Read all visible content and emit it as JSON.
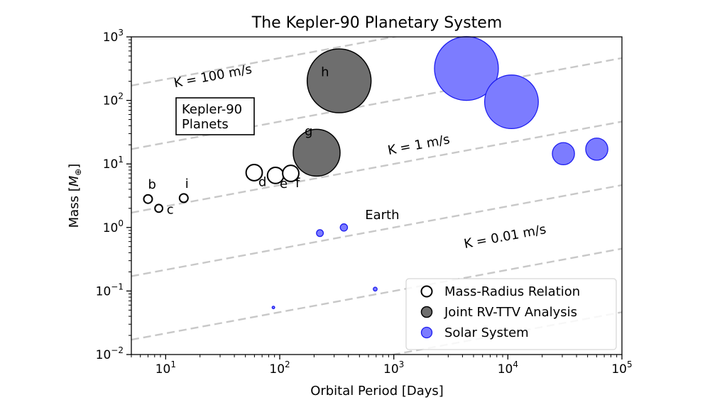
{
  "chart_data": {
    "type": "scatter",
    "title": "The Kepler-90 Planetary System",
    "xlabel": "Orbital Period [Days]",
    "ylabel_main": "Mass [",
    "ylabel_symbol": "M",
    "ylabel_sub": "⊕",
    "ylabel_end": "]",
    "xscale": "log",
    "yscale": "log",
    "xlim": [
      5,
      100000
    ],
    "ylim": [
      0.01,
      1000
    ],
    "x_ticks": [
      {
        "value": 10,
        "base": "10",
        "exp": "1"
      },
      {
        "value": 100,
        "base": "10",
        "exp": "2"
      },
      {
        "value": 1000,
        "base": "10",
        "exp": "3"
      },
      {
        "value": 10000,
        "base": "10",
        "exp": "4"
      },
      {
        "value": 100000,
        "base": "10",
        "exp": "5"
      }
    ],
    "y_ticks": [
      {
        "value": 0.01,
        "base": "10",
        "exp": "−2"
      },
      {
        "value": 0.1,
        "base": "10",
        "exp": "−1"
      },
      {
        "value": 1,
        "base": "10",
        "exp": "0"
      },
      {
        "value": 10,
        "base": "10",
        "exp": "1"
      },
      {
        "value": 100,
        "base": "10",
        "exp": "2"
      },
      {
        "value": 1000,
        "base": "10",
        "exp": "3"
      }
    ],
    "rv_lines": {
      "slope": 0.3333,
      "intercepts": [
        2.0,
        1.0,
        0.0,
        -1.0,
        -2.0,
        -3.0
      ],
      "labels": [
        {
          "text": "K = 100 m/s",
          "x": 12,
          "y": 160
        },
        {
          "text": "K = 1 m/s",
          "x": 900,
          "y": 14
        },
        {
          "text": "K = 0.01 m/s",
          "x": 4200,
          "y": 0.47
        }
      ]
    },
    "series": [
      {
        "name": "Mass-Radius Relation",
        "style": "open",
        "points": [
          {
            "label": "b",
            "x": 7.0,
            "y": 2.8,
            "size": 1.0,
            "lx": 7.0,
            "ly": 4.1
          },
          {
            "label": "c",
            "x": 8.7,
            "y": 2.0,
            "size": 0.9,
            "lx": 10.2,
            "ly": 1.65
          },
          {
            "label": "i",
            "x": 14.4,
            "y": 2.9,
            "size": 1.0,
            "lx": 14.8,
            "ly": 4.2
          },
          {
            "label": "d",
            "x": 59.7,
            "y": 7.3,
            "size": 1.9,
            "lx": 65,
            "ly": 4.5
          },
          {
            "label": "e",
            "x": 91.9,
            "y": 6.6,
            "size": 1.9,
            "lx": 100,
            "ly": 4.2
          },
          {
            "label": "f",
            "x": 124.9,
            "y": 7.1,
            "size": 1.9,
            "lx": 137,
            "ly": 4.3
          }
        ]
      },
      {
        "name": "Joint RV-TTV Analysis",
        "style": "gray",
        "points": [
          {
            "label": "g",
            "x": 210.6,
            "y": 15.0,
            "size": 5.5,
            "lx": 165,
            "ly": 28
          },
          {
            "label": "h",
            "x": 331.6,
            "y": 203,
            "size": 7.5,
            "lx": 230,
            "ly": 240
          }
        ]
      },
      {
        "name": "Solar System",
        "style": "blue",
        "points": [
          {
            "label": "",
            "x": 88,
            "y": 0.055,
            "size": 0.3
          },
          {
            "label": "",
            "x": 225,
            "y": 0.815,
            "size": 0.8
          },
          {
            "label": "Earth",
            "x": 365,
            "y": 1.0,
            "size": 0.85,
            "lx": 560,
            "ly": 1.35
          },
          {
            "label": "",
            "x": 687,
            "y": 0.107,
            "size": 0.45
          },
          {
            "label": "",
            "x": 4333,
            "y": 318,
            "size": 7.5
          },
          {
            "label": "",
            "x": 10759,
            "y": 95,
            "size": 6.3
          },
          {
            "label": "",
            "x": 30687,
            "y": 14.5,
            "size": 2.6
          },
          {
            "label": "",
            "x": 60190,
            "y": 17.1,
            "size": 2.6
          }
        ]
      }
    ],
    "annotation_box": {
      "line1": "Kepler-90",
      "line2": "Planets"
    },
    "legend": {
      "position": "lower-right",
      "entries": [
        {
          "label": "Mass-Radius Relation",
          "style": "open"
        },
        {
          "label": "Joint RV-TTV Analysis",
          "style": "gray"
        },
        {
          "label": "Solar System",
          "style": "blue"
        }
      ]
    },
    "colors": {
      "gray_fill": "#6e6e6e",
      "blue_fill": "#7c7cff",
      "blue_edge": "#1c1cf0",
      "line": "#c8c8c8"
    }
  }
}
